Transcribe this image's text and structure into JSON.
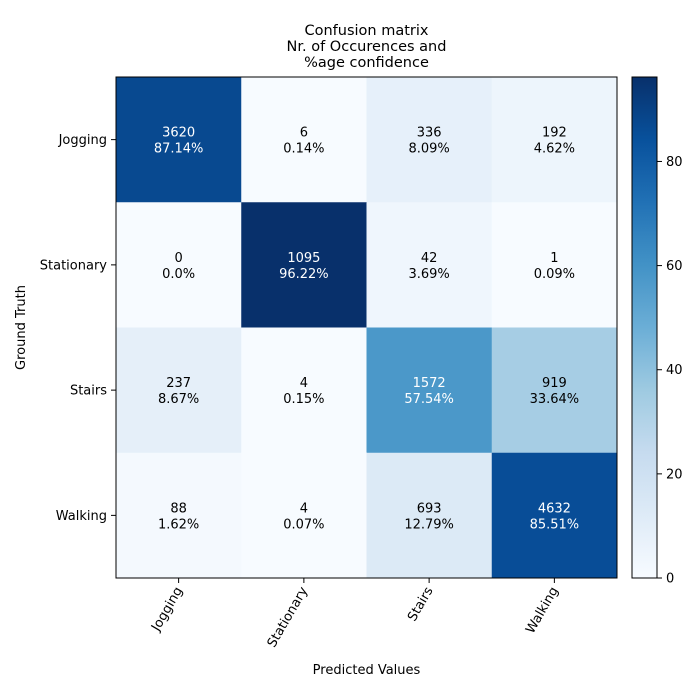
{
  "chart_data": {
    "type": "heatmap",
    "title": [
      "Confusion matrix",
      "Nr. of Occurences and",
      "%age confidence"
    ],
    "xlabel": "Predicted Values",
    "ylabel": "Ground Truth",
    "x_categories": [
      "Jogging",
      "Stationary",
      "Stairs",
      "Walking"
    ],
    "y_categories": [
      "Jogging",
      "Stationary",
      "Stairs",
      "Walking"
    ],
    "counts": [
      [
        3620,
        6,
        336,
        192
      ],
      [
        0,
        1095,
        42,
        1
      ],
      [
        237,
        4,
        1572,
        919
      ],
      [
        88,
        4,
        693,
        4632
      ]
    ],
    "percentages": [
      [
        "87.14%",
        "0.14%",
        "8.09%",
        "4.62%"
      ],
      [
        "0.0%",
        "96.22%",
        "3.69%",
        "0.09%"
      ],
      [
        "8.67%",
        "0.15%",
        "57.54%",
        "33.64%"
      ],
      [
        "1.62%",
        "0.07%",
        "12.79%",
        "85.51%"
      ]
    ],
    "colormap": "Blues",
    "colorbar": {
      "min": 0,
      "max": 96.22,
      "ticks": [
        0,
        20,
        40,
        60,
        80
      ]
    },
    "x_tick_rotation": 60,
    "grid": false
  }
}
